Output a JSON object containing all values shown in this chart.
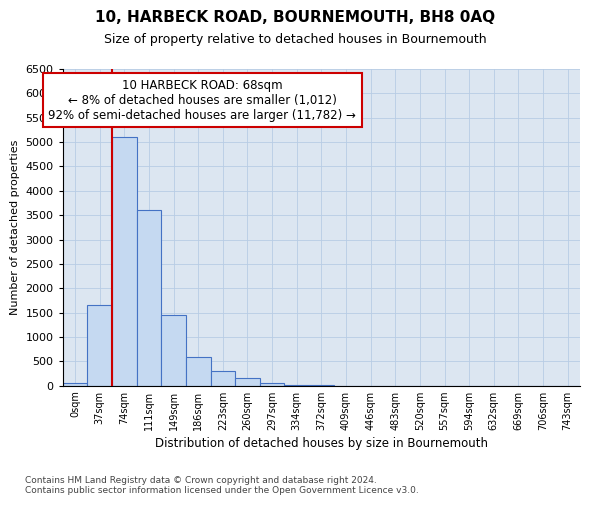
{
  "title": "10, HARBECK ROAD, BOURNEMOUTH, BH8 0AQ",
  "subtitle": "Size of property relative to detached houses in Bournemouth",
  "xlabel": "Distribution of detached houses by size in Bournemouth",
  "ylabel": "Number of detached properties",
  "footer_line1": "Contains HM Land Registry data © Crown copyright and database right 2024.",
  "footer_line2": "Contains public sector information licensed under the Open Government Licence v3.0.",
  "bar_labels": [
    "0sqm",
    "37sqm",
    "74sqm",
    "111sqm",
    "149sqm",
    "186sqm",
    "223sqm",
    "260sqm",
    "297sqm",
    "334sqm",
    "372sqm",
    "409sqm",
    "446sqm",
    "483sqm",
    "520sqm",
    "557sqm",
    "594sqm",
    "632sqm",
    "669sqm",
    "706sqm",
    "743sqm"
  ],
  "bar_values": [
    50,
    1650,
    5100,
    3600,
    1450,
    590,
    310,
    160,
    50,
    20,
    5,
    2,
    1,
    0,
    0,
    0,
    0,
    0,
    0,
    0,
    0
  ],
  "bar_color": "#c5d9f1",
  "bar_edge_color": "#4472c4",
  "ylim": [
    0,
    6500
  ],
  "yticks": [
    0,
    500,
    1000,
    1500,
    2000,
    2500,
    3000,
    3500,
    4000,
    4500,
    5000,
    5500,
    6000,
    6500
  ],
  "grid_color": "#b8cce4",
  "background_color": "#dce6f1",
  "annotation_title": "10 HARBECK ROAD: 68sqm",
  "annotation_line1": "← 8% of detached houses are smaller (1,012)",
  "annotation_line2": "92% of semi-detached houses are larger (11,782) →",
  "annotation_box_edge": "#cc0000",
  "red_line_color": "#cc0000",
  "red_line_x": 2.0
}
